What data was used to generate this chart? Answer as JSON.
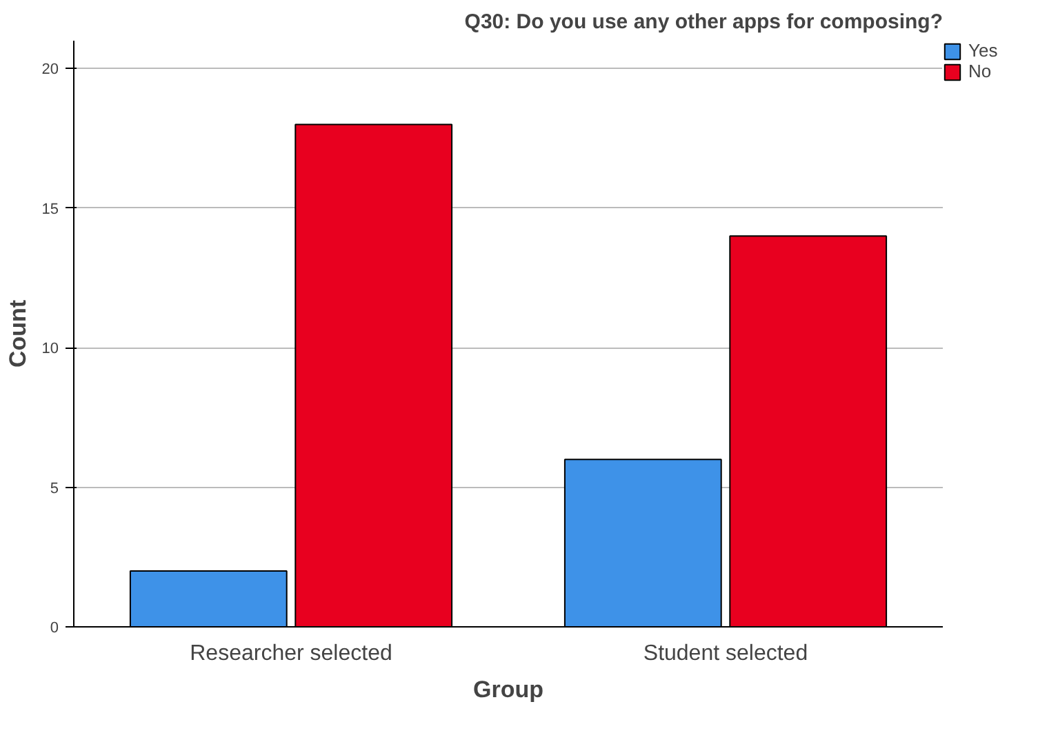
{
  "chart_data": {
    "type": "bar",
    "title": "Q30: Do you use any other apps for composing?",
    "xlabel": "Group",
    "ylabel": "Count",
    "categories": [
      "Researcher selected",
      "Student selected"
    ],
    "series": [
      {
        "name": "Yes",
        "color": "#3e92e8",
        "values": [
          2,
          6
        ]
      },
      {
        "name": "No",
        "color": "#e8001f",
        "values": [
          18,
          14
        ]
      }
    ],
    "ylim": [
      0,
      21
    ],
    "yticks": [
      0,
      5,
      10,
      15,
      20
    ],
    "grid": "y",
    "legend": "top right"
  }
}
